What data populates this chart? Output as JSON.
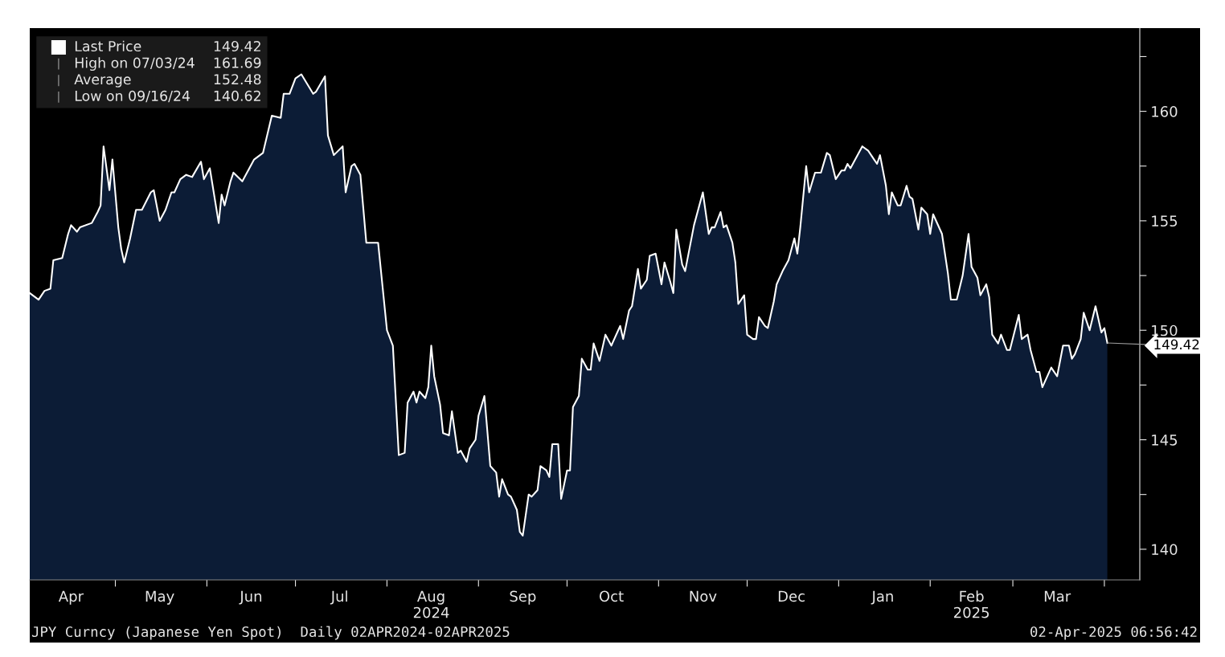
{
  "chart_data": {
    "type": "area",
    "legend": "top left",
    "grid": false,
    "annotations": [
      "JPY Curncy (Japanese Yen Spot)  Daily 02APR2024-02APR2025",
      "02-Apr-2025 06:56:42",
      {
        "text": "149.42",
        "x": "2025-04-02",
        "y": 149.42
      },
      "149.42",
      "High on 07/03/24",
      "161.69",
      "Average",
      "152.48",
      "Low on 09/16/24",
      "140.62"
    ],
    "xlim": [
      "2024-04-02",
      "2025-04-13"
    ],
    "ylim": [
      138.6,
      163.8
    ],
    "xticks": [
      {
        "value": "2024-04-16",
        "label": "Apr"
      },
      {
        "value": "2024-05-01",
        "label": null
      },
      {
        "value": "2024-05-16",
        "label": "May"
      },
      {
        "value": "2024-06-01",
        "label": null
      },
      {
        "value": "2024-06-16",
        "label": "Jun"
      },
      {
        "value": "2024-07-01",
        "label": null
      },
      {
        "value": "2024-07-16",
        "label": "Jul"
      },
      {
        "value": "2024-08-01",
        "label": null
      },
      {
        "value": "2024-08-16",
        "label": "Aug\n2024"
      },
      {
        "value": "2024-09-01",
        "label": null
      },
      {
        "value": "2024-09-16",
        "label": "Sep"
      },
      {
        "value": "2024-10-01",
        "label": null
      },
      {
        "value": "2024-10-16",
        "label": "Oct"
      },
      {
        "value": "2024-11-01",
        "label": null
      },
      {
        "value": "2024-11-16",
        "label": "Nov"
      },
      {
        "value": "2024-12-01",
        "label": null
      },
      {
        "value": "2024-12-16",
        "label": "Dec"
      },
      {
        "value": "2025-01-01",
        "label": null
      },
      {
        "value": "2025-01-16",
        "label": "Jan"
      },
      {
        "value": "2025-02-01",
        "label": null
      },
      {
        "value": "2025-02-15",
        "label": "Feb\n2025"
      },
      {
        "value": "2025-03-01",
        "label": null
      },
      {
        "value": "2025-03-16",
        "label": "Mar"
      },
      {
        "value": "2025-04-01",
        "label": null
      }
    ],
    "yticks": [
      140,
      {
        "value": 142.5,
        "label": null
      },
      145,
      {
        "value": 147.5,
        "label": null
      },
      150,
      {
        "value": 152.5,
        "label": null
      },
      155,
      {
        "value": 157.5,
        "label": null
      },
      160,
      {
        "value": 162.5,
        "label": null
      }
    ],
    "series": [
      {
        "name": "Last Price",
        "color": "#0c1c36",
        "x": [
          "2024-04-02",
          "2024-04-05",
          "2024-04-07",
          "2024-04-09",
          "2024-04-10",
          "2024-04-13",
          "2024-04-15",
          "2024-04-16",
          "2024-04-18",
          "2024-04-19",
          "2024-04-23",
          "2024-04-25",
          "2024-04-26",
          "2024-04-27",
          "2024-04-29",
          "2024-04-30",
          "2024-05-02",
          "2024-05-03",
          "2024-05-04",
          "2024-05-06",
          "2024-05-08",
          "2024-05-10",
          "2024-05-13",
          "2024-05-14",
          "2024-05-16",
          "2024-05-18",
          "2024-05-20",
          "2024-05-21",
          "2024-05-23",
          "2024-05-25",
          "2024-05-27",
          "2024-05-30",
          "2024-05-31",
          "2024-06-02",
          "2024-06-05",
          "2024-06-06",
          "2024-06-07",
          "2024-06-09",
          "2024-06-10",
          "2024-06-13",
          "2024-06-17",
          "2024-06-20",
          "2024-06-23",
          "2024-06-26",
          "2024-06-27",
          "2024-06-29",
          "2024-07-01",
          "2024-07-03",
          "2024-07-07",
          "2024-07-08",
          "2024-07-11",
          "2024-07-12",
          "2024-07-14",
          "2024-07-17",
          "2024-07-18",
          "2024-07-20",
          "2024-07-21",
          "2024-07-23",
          "2024-07-25",
          "2024-07-27",
          "2024-07-29",
          "2024-08-01",
          "2024-08-03",
          "2024-08-05",
          "2024-08-07",
          "2024-08-08",
          "2024-08-10",
          "2024-08-11",
          "2024-08-12",
          "2024-08-14",
          "2024-08-15",
          "2024-08-16",
          "2024-08-17",
          "2024-08-19",
          "2024-08-20",
          "2024-08-22",
          "2024-08-23",
          "2024-08-25",
          "2024-08-26",
          "2024-08-28",
          "2024-08-29",
          "2024-08-31",
          "2024-09-01",
          "2024-09-03",
          "2024-09-05",
          "2024-09-07",
          "2024-09-08",
          "2024-09-09",
          "2024-09-11",
          "2024-09-12",
          "2024-09-14",
          "2024-09-15",
          "2024-09-16",
          "2024-09-18",
          "2024-09-19",
          "2024-09-21",
          "2024-09-22",
          "2024-09-24",
          "2024-09-25",
          "2024-09-26",
          "2024-09-28",
          "2024-09-29",
          "2024-10-01",
          "2024-10-02",
          "2024-10-03",
          "2024-10-05",
          "2024-10-06",
          "2024-10-08",
          "2024-10-09",
          "2024-10-10",
          "2024-10-12",
          "2024-10-14",
          "2024-10-16",
          "2024-10-19",
          "2024-10-20",
          "2024-10-22",
          "2024-10-23",
          "2024-10-25",
          "2024-10-26",
          "2024-10-28",
          "2024-10-29",
          "2024-10-31",
          "2024-11-02",
          "2024-11-03",
          "2024-11-05",
          "2024-11-06",
          "2024-11-07",
          "2024-11-09",
          "2024-11-10",
          "2024-11-13",
          "2024-11-16",
          "2024-11-18",
          "2024-11-19",
          "2024-11-20",
          "2024-11-22",
          "2024-11-23",
          "2024-11-24",
          "2024-11-26",
          "2024-11-27",
          "2024-11-28",
          "2024-11-30",
          "2024-12-01",
          "2024-12-03",
          "2024-12-04",
          "2024-12-05",
          "2024-12-07",
          "2024-12-08",
          "2024-12-10",
          "2024-12-11",
          "2024-12-13",
          "2024-12-15",
          "2024-12-17",
          "2024-12-18",
          "2024-12-19",
          "2024-12-21",
          "2024-12-22",
          "2024-12-24",
          "2024-12-26",
          "2024-12-28",
          "2024-12-29",
          "2024-12-31",
          "2025-01-02",
          "2025-01-03",
          "2025-01-04",
          "2025-01-05",
          "2025-01-09",
          "2025-01-11",
          "2025-01-13",
          "2025-01-14",
          "2025-01-15",
          "2025-01-17",
          "2025-01-18",
          "2025-01-19",
          "2025-01-21",
          "2025-01-22",
          "2025-01-24",
          "2025-01-25",
          "2025-01-26",
          "2025-01-28",
          "2025-01-29",
          "2025-01-31",
          "2025-02-01",
          "2025-02-02",
          "2025-02-05",
          "2025-02-07",
          "2025-02-08",
          "2025-02-10",
          "2025-02-12",
          "2025-02-14",
          "2025-02-15",
          "2025-02-17",
          "2025-02-18",
          "2025-02-20",
          "2025-02-21",
          "2025-02-22",
          "2025-02-24",
          "2025-02-25",
          "2025-02-27",
          "2025-02-28",
          "2025-03-03",
          "2025-03-04",
          "2025-03-06",
          "2025-03-07",
          "2025-03-09",
          "2025-03-10",
          "2025-03-11",
          "2025-03-14",
          "2025-03-16",
          "2025-03-18",
          "2025-03-20",
          "2025-03-21",
          "2025-03-22",
          "2025-03-24",
          "2025-03-25",
          "2025-03-27",
          "2025-03-29",
          "2025-03-31",
          "2025-04-01",
          "2025-04-02"
        ],
        "values": [
          151.7,
          151.4,
          151.8,
          151.9,
          153.2,
          153.3,
          154.4,
          154.8,
          154.5,
          154.7,
          154.9,
          155.4,
          155.7,
          158.4,
          156.4,
          157.8,
          154.7,
          153.7,
          153.1,
          154.2,
          155.5,
          155.5,
          156.3,
          156.4,
          155.0,
          155.5,
          156.3,
          156.3,
          156.9,
          157.1,
          157.0,
          157.7,
          156.9,
          157.4,
          154.9,
          156.2,
          155.7,
          156.8,
          157.2,
          156.8,
          157.8,
          158.1,
          159.8,
          159.7,
          160.8,
          160.8,
          161.5,
          161.69,
          160.8,
          160.9,
          161.6,
          158.9,
          158.0,
          158.4,
          156.3,
          157.5,
          157.6,
          157.1,
          154.0,
          154.0,
          154.0,
          150.0,
          149.3,
          144.3,
          144.4,
          146.7,
          147.2,
          146.7,
          147.2,
          146.9,
          147.4,
          149.3,
          147.9,
          146.6,
          145.3,
          145.2,
          146.3,
          144.4,
          144.5,
          144.0,
          144.6,
          145.0,
          146.1,
          147.0,
          143.8,
          143.5,
          142.4,
          143.2,
          142.5,
          142.4,
          141.8,
          140.8,
          140.62,
          142.5,
          142.4,
          142.7,
          143.8,
          143.6,
          143.3,
          144.8,
          144.8,
          142.3,
          143.6,
          143.6,
          146.5,
          147.0,
          148.7,
          148.2,
          148.2,
          149.4,
          148.6,
          149.8,
          149.3,
          150.2,
          149.6,
          150.9,
          151.1,
          152.8,
          151.9,
          152.3,
          153.4,
          153.5,
          152.1,
          153.1,
          152.2,
          151.7,
          154.6,
          153.0,
          152.7,
          154.8,
          156.3,
          154.4,
          154.7,
          154.7,
          155.4,
          154.7,
          154.8,
          154.0,
          153.1,
          151.2,
          151.6,
          149.8,
          149.6,
          149.6,
          150.6,
          150.2,
          150.1,
          151.3,
          152.1,
          152.7,
          153.2,
          154.2,
          153.5,
          154.7,
          157.5,
          156.3,
          157.2,
          157.2,
          158.1,
          158.0,
          156.9,
          157.3,
          157.3,
          157.6,
          157.4,
          158.4,
          158.2,
          157.8,
          157.6,
          158.0,
          156.6,
          155.3,
          156.3,
          155.7,
          155.7,
          156.6,
          156.1,
          156.0,
          154.6,
          155.6,
          155.3,
          154.4,
          155.3,
          154.4,
          152.6,
          151.4,
          151.4,
          152.5,
          154.4,
          152.9,
          152.4,
          151.6,
          152.1,
          151.5,
          149.8,
          149.4,
          149.8,
          149.1,
          149.1,
          150.7,
          149.6,
          149.8,
          149.1,
          148.1,
          148.1,
          147.4,
          148.3,
          147.9,
          149.3,
          149.3,
          148.7,
          148.9,
          149.6,
          150.8,
          150.0,
          151.1,
          149.9,
          150.1,
          149.42
        ]
      }
    ]
  }
}
